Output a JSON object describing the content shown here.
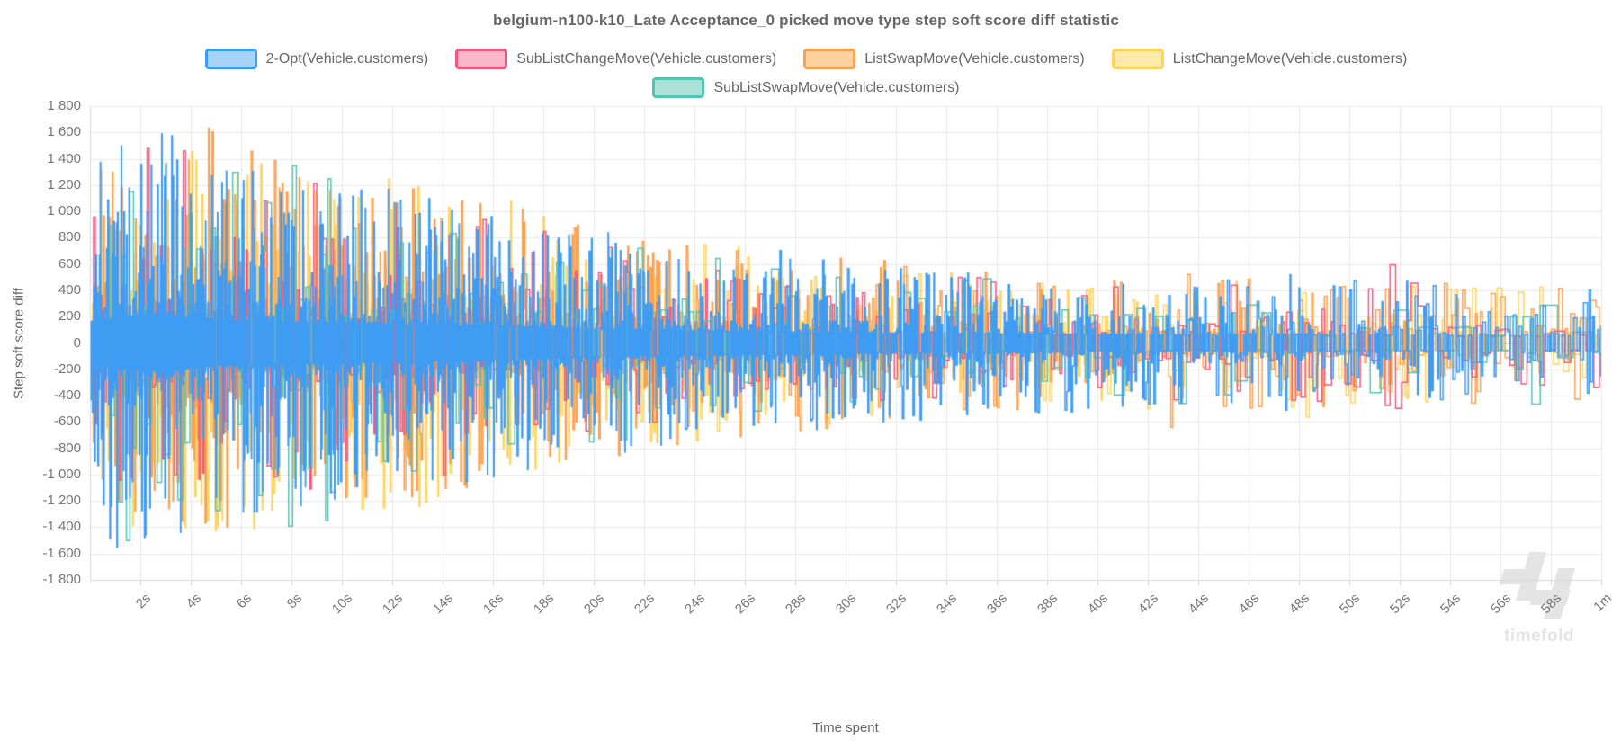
{
  "title": "belgium-n100-k10_Late Acceptance_0 picked move type step soft score diff statistic",
  "watermark": {
    "text": "timefold"
  },
  "colors": {
    "title_text": "#666666",
    "tick_text": "#777777",
    "grid": "#e8e8e8",
    "axis_border": "#d9d9d9",
    "tick_mark": "#cccccc",
    "watermark": "#e4e4e4"
  },
  "chart_data": {
    "type": "line",
    "stepped": true,
    "title": "belgium-n100-k10_Late Acceptance_0 picked move type step soft score diff statistic",
    "xlabel": "Time spent",
    "ylabel": "Step soft score diff",
    "xlim_seconds": [
      0,
      60
    ],
    "ylim": [
      -1800,
      1800
    ],
    "grid": true,
    "legend_position": "top",
    "x_tick_seconds": [
      2,
      4,
      6,
      8,
      10,
      12,
      14,
      16,
      18,
      20,
      22,
      24,
      26,
      28,
      30,
      32,
      34,
      36,
      38,
      40,
      42,
      44,
      46,
      48,
      50,
      52,
      54,
      56,
      58,
      60
    ],
    "x_tick_labels": [
      "2s",
      "4s",
      "6s",
      "8s",
      "10s",
      "12s",
      "14s",
      "16s",
      "18s",
      "20s",
      "22s",
      "24s",
      "26s",
      "28s",
      "30s",
      "32s",
      "34s",
      "36s",
      "38s",
      "40s",
      "42s",
      "44s",
      "46s",
      "48s",
      "50s",
      "52s",
      "54s",
      "56s",
      "58s",
      "1m"
    ],
    "y_tick_values": [
      1800,
      1600,
      1400,
      1200,
      1000,
      800,
      600,
      400,
      200,
      0,
      -200,
      -400,
      -600,
      -800,
      -1000,
      -1200,
      -1400,
      -1600,
      -1800
    ],
    "y_tick_labels": [
      "1 800",
      "1 600",
      "1 400",
      "1 200",
      "1 000",
      "800",
      "600",
      "400",
      "200",
      "0",
      "-200",
      "-400",
      "-600",
      "-800",
      "-1 000",
      "-1 200",
      "-1 400",
      "-1 600",
      "-1 800"
    ],
    "series": [
      {
        "name": "2-Opt(Vehicle.customers)",
        "color": "#3e9cf3",
        "legend_fill": "#a6d3f9",
        "seed": 11,
        "steps_per_sec_start": 45,
        "steps_per_sec_end": 9,
        "envelope": [
          [
            0,
            1350
          ],
          [
            1.5,
            1650
          ],
          [
            3,
            1750
          ],
          [
            5,
            1400
          ],
          [
            8,
            1280
          ],
          [
            12,
            1180
          ],
          [
            16,
            1020
          ],
          [
            20,
            860
          ],
          [
            24,
            760
          ],
          [
            28,
            700
          ],
          [
            32,
            600
          ],
          [
            36,
            560
          ],
          [
            40,
            520
          ],
          [
            44,
            500
          ],
          [
            48,
            540
          ],
          [
            52,
            480
          ],
          [
            56,
            460
          ],
          [
            60,
            450
          ]
        ]
      },
      {
        "name": "SubListChangeMove(Vehicle.customers)",
        "color": "#f4577f",
        "legend_fill": "#fbb7ca",
        "seed": 22,
        "steps_per_sec_start": 13,
        "steps_per_sec_end": 3.5,
        "envelope": [
          [
            0,
            1250
          ],
          [
            3,
            1580
          ],
          [
            6,
            1320
          ],
          [
            9,
            1220
          ],
          [
            12,
            1120
          ],
          [
            16,
            960
          ],
          [
            20,
            840
          ],
          [
            24,
            720
          ],
          [
            28,
            640
          ],
          [
            32,
            560
          ],
          [
            36,
            510
          ],
          [
            40,
            480
          ],
          [
            44,
            460
          ],
          [
            48,
            440
          ],
          [
            51,
            640
          ],
          [
            54,
            430
          ],
          [
            60,
            420
          ]
        ]
      },
      {
        "name": "ListSwapMove(Vehicle.customers)",
        "color": "#faa14f",
        "legend_fill": "#fdd2a0",
        "seed": 33,
        "steps_per_sec_start": 26,
        "steps_per_sec_end": 6,
        "envelope": [
          [
            0,
            1280
          ],
          [
            2,
            1400
          ],
          [
            5,
            1660
          ],
          [
            8,
            1340
          ],
          [
            12,
            1240
          ],
          [
            16,
            1080
          ],
          [
            20,
            880
          ],
          [
            24,
            780
          ],
          [
            28,
            680
          ],
          [
            32,
            620
          ],
          [
            36,
            560
          ],
          [
            40,
            530
          ],
          [
            42,
            700
          ],
          [
            46,
            520
          ],
          [
            50,
            480
          ],
          [
            54,
            460
          ],
          [
            60,
            440
          ]
        ]
      },
      {
        "name": "ListChangeMove(Vehicle.customers)",
        "color": "#ffd45e",
        "legend_fill": "#ffeaab",
        "seed": 44,
        "steps_per_sec_start": 26,
        "steps_per_sec_end": 6,
        "envelope": [
          [
            0,
            1320
          ],
          [
            4,
            1520
          ],
          [
            8,
            1430
          ],
          [
            12,
            1380
          ],
          [
            16,
            1120
          ],
          [
            20,
            920
          ],
          [
            24,
            780
          ],
          [
            28,
            660
          ],
          [
            32,
            600
          ],
          [
            36,
            550
          ],
          [
            40,
            510
          ],
          [
            44,
            490
          ],
          [
            46,
            720
          ],
          [
            50,
            470
          ],
          [
            54,
            450
          ],
          [
            60,
            430
          ]
        ]
      },
      {
        "name": "SubListSwapMove(Vehicle.customers)",
        "color": "#55c3b2",
        "legend_fill": "#abe1d7",
        "seed": 55,
        "steps_per_sec_start": 7,
        "steps_per_sec_end": 1.8,
        "envelope": [
          [
            0,
            1150
          ],
          [
            2.5,
            1780
          ],
          [
            5,
            1320
          ],
          [
            8,
            1560
          ],
          [
            12,
            1120
          ],
          [
            16,
            960
          ],
          [
            20,
            820
          ],
          [
            24,
            700
          ],
          [
            28,
            610
          ],
          [
            32,
            550
          ],
          [
            36,
            510
          ],
          [
            40,
            480
          ],
          [
            44,
            460
          ],
          [
            48,
            440
          ],
          [
            52,
            430
          ],
          [
            57,
            470
          ],
          [
            60,
            420
          ]
        ]
      }
    ],
    "legend_rows": [
      [
        0,
        1,
        2,
        3
      ],
      [
        4
      ]
    ],
    "draw_order": [
      3,
      2,
      1,
      4,
      0
    ],
    "amplitude_model": {
      "floor": 0.12,
      "exponent": 3,
      "sign_flip_prob": 0.72,
      "line_width": 1.5
    }
  }
}
